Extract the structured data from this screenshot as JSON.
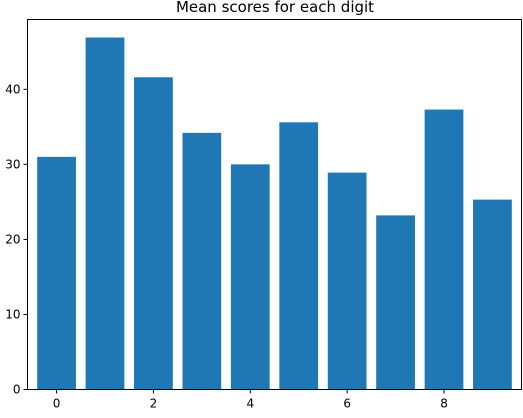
{
  "chart_data": {
    "type": "bar",
    "title": "Mean scores for each digit",
    "xlabel": "",
    "ylabel": "",
    "categories": [
      0,
      1,
      2,
      3,
      4,
      5,
      6,
      7,
      8,
      9
    ],
    "values": [
      31.0,
      46.9,
      41.6,
      34.2,
      30.0,
      35.6,
      28.9,
      23.2,
      37.3,
      25.3
    ],
    "x_ticks": [
      0,
      2,
      4,
      6,
      8
    ],
    "y_ticks": [
      0,
      10,
      20,
      30,
      40
    ],
    "xlim": [
      -0.6,
      9.6
    ],
    "ylim": [
      0,
      49.3
    ],
    "bar_color": "#1f77b4",
    "grid": false,
    "legend": "none"
  }
}
